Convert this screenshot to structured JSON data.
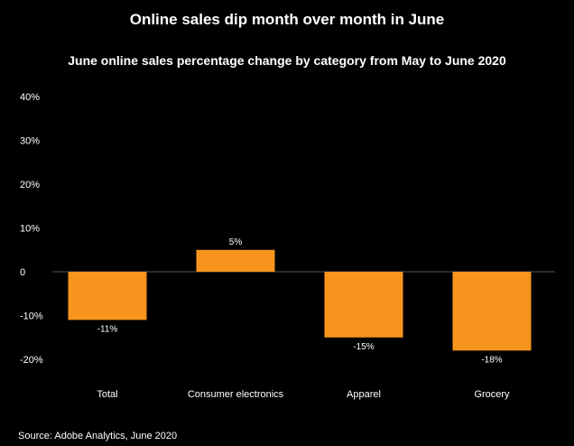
{
  "chart_data": {
    "type": "bar",
    "title": "Online sales dip month over month in June",
    "subtitle": "June online sales percentage change by category from May to June 2020",
    "categories": [
      "Total",
      "Consumer electronics",
      "Apparel",
      "Grocery"
    ],
    "values": [
      -11,
      5,
      -15,
      -18
    ],
    "data_labels": [
      "-11%",
      "5%",
      "-15%",
      "-18%"
    ],
    "y_ticks": [
      40,
      30,
      20,
      10,
      0,
      -10,
      -20
    ],
    "y_tick_labels": [
      "40%",
      "30%",
      "20%",
      "10%",
      "0",
      "-10%",
      "-20%"
    ],
    "ylim": [
      -20,
      40
    ],
    "grid": false,
    "legend": "none",
    "bar_color": "#F7941D",
    "background": "#000000",
    "baseline_color": "#555555"
  },
  "source": "Source: Adobe Analytics, June 2020"
}
